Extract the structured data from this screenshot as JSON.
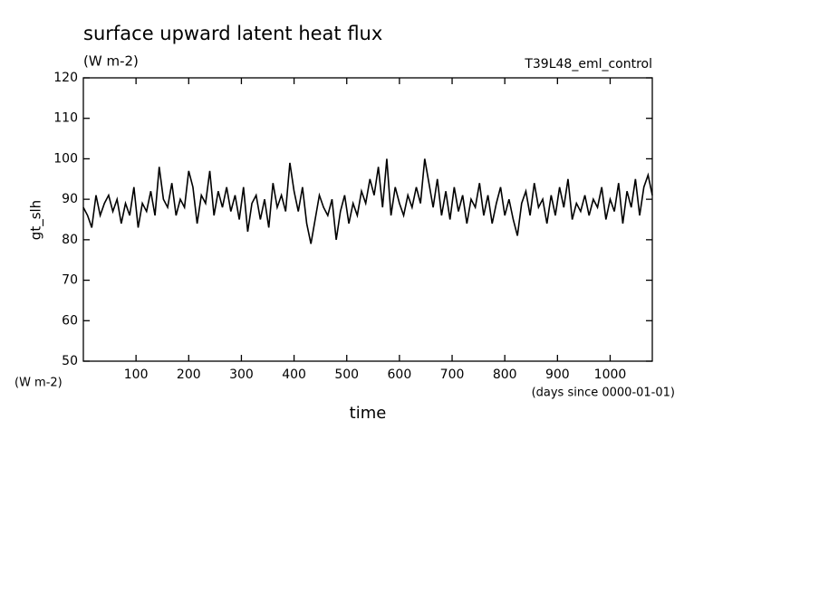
{
  "chart_data": {
    "type": "line",
    "title": "surface upward latent heat flux",
    "subtitle": "(W m-2)",
    "annotation": "T39L48_eml_control",
    "y_label": "gt_slh",
    "y_unit": "(W m-2)",
    "x_label": "time",
    "x_unit": "(days since 0000-01-01)",
    "xlim": [
      0,
      1080
    ],
    "ylim": [
      50,
      120
    ],
    "xticks": [
      100,
      200,
      300,
      400,
      500,
      600,
      700,
      800,
      900,
      1000
    ],
    "yticks": [
      50,
      60,
      70,
      80,
      90,
      100,
      110,
      120
    ],
    "x": [
      0,
      8,
      16,
      24,
      32,
      40,
      48,
      56,
      64,
      72,
      80,
      88,
      96,
      104,
      112,
      120,
      128,
      136,
      144,
      152,
      160,
      168,
      176,
      184,
      192,
      200,
      208,
      216,
      224,
      232,
      240,
      248,
      256,
      264,
      272,
      280,
      288,
      296,
      304,
      312,
      320,
      328,
      336,
      344,
      352,
      360,
      368,
      376,
      384,
      392,
      400,
      408,
      416,
      424,
      432,
      440,
      448,
      456,
      464,
      472,
      480,
      488,
      496,
      504,
      512,
      520,
      528,
      536,
      544,
      552,
      560,
      568,
      576,
      584,
      592,
      600,
      608,
      616,
      624,
      632,
      640,
      648,
      656,
      664,
      672,
      680,
      688,
      696,
      704,
      712,
      720,
      728,
      736,
      744,
      752,
      760,
      768,
      776,
      784,
      792,
      800,
      808,
      816,
      824,
      832,
      840,
      848,
      856,
      864,
      872,
      880,
      888,
      896,
      904,
      912,
      920,
      928,
      936,
      944,
      952,
      960,
      968,
      976,
      984,
      992,
      1000,
      1008,
      1016,
      1024,
      1032,
      1040,
      1048,
      1056,
      1064,
      1072,
      1080
    ],
    "series": [
      {
        "name": "gt_slh",
        "color": "#000000",
        "values": [
          88,
          86,
          83,
          91,
          86,
          89,
          91,
          87,
          90,
          84,
          89,
          86,
          93,
          83,
          89,
          87,
          92,
          86,
          98,
          90,
          88,
          94,
          86,
          90,
          88,
          97,
          93,
          84,
          91,
          89,
          97,
          86,
          92,
          88,
          93,
          87,
          91,
          85,
          93,
          82,
          89,
          91,
          85,
          90,
          83,
          94,
          88,
          91,
          87,
          99,
          92,
          87,
          93,
          84,
          79,
          85,
          91,
          88,
          86,
          90,
          80,
          87,
          91,
          84,
          89,
          86,
          92,
          89,
          95,
          91,
          98,
          88,
          100,
          86,
          93,
          89,
          86,
          91,
          88,
          93,
          89,
          100,
          94,
          88,
          95,
          86,
          92,
          85,
          93,
          87,
          91,
          84,
          90,
          88,
          94,
          86,
          91,
          84,
          89,
          93,
          86,
          90,
          85,
          81,
          89,
          92,
          86,
          94,
          88,
          90,
          84,
          91,
          86,
          93,
          88,
          95,
          85,
          89,
          87,
          91,
          86,
          90,
          88,
          93,
          85,
          90,
          87,
          94,
          84,
          92,
          88,
          95,
          86,
          93,
          96,
          91
        ]
      }
    ]
  }
}
